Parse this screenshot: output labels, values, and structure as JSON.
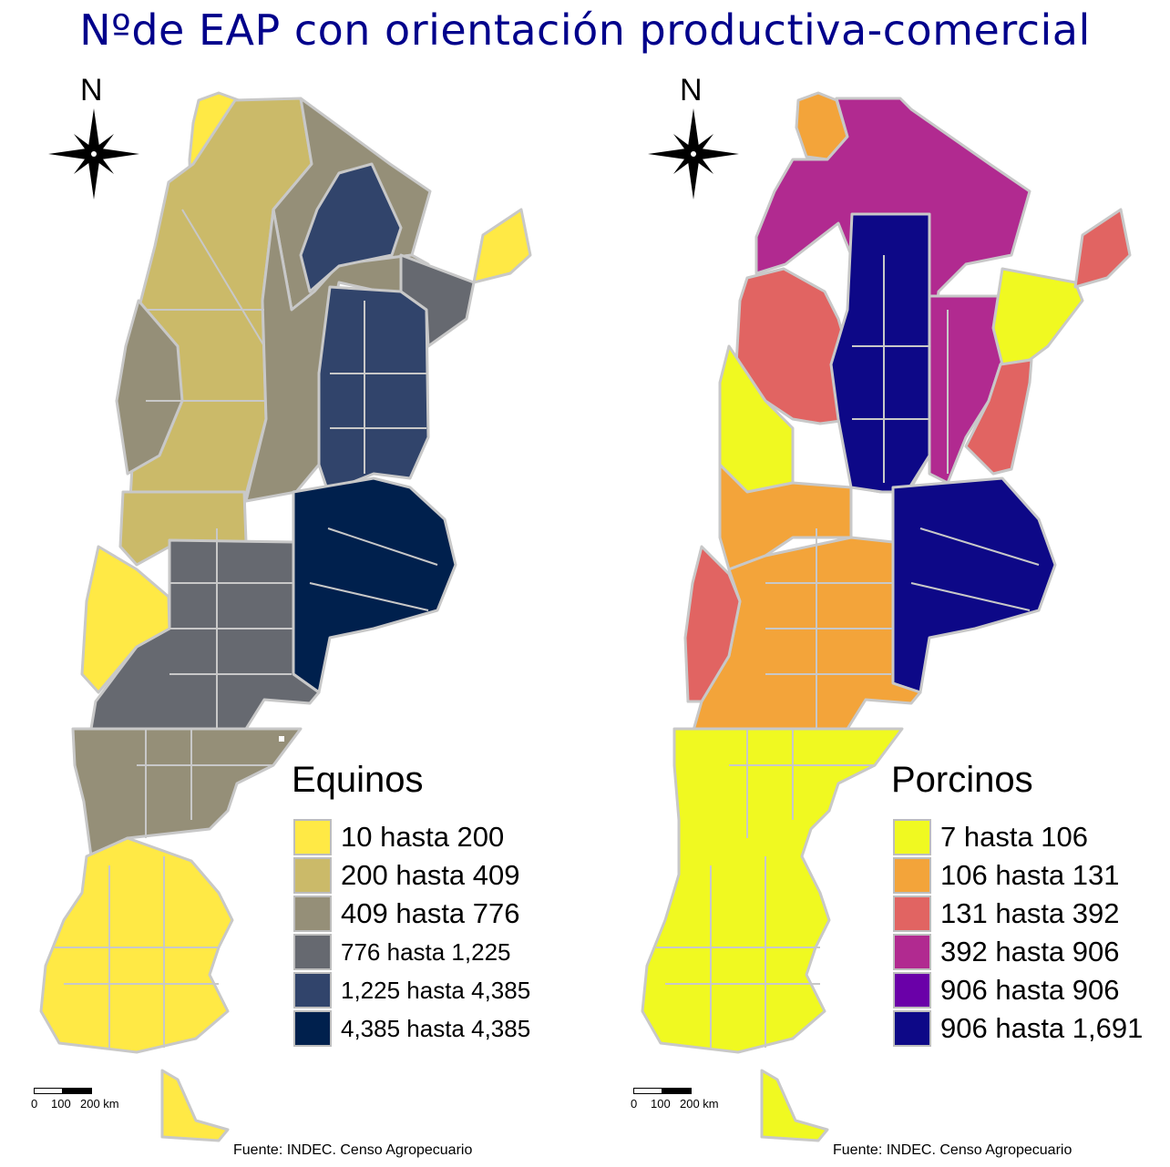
{
  "title": "Nºde EAP con orientación productiva-comercial",
  "maps": [
    {
      "north_label": "N",
      "legend_title": "Equinos",
      "legend": [
        {
          "label": "10 hasta 200",
          "color": "#ffe945"
        },
        {
          "label": "200 hasta 409",
          "color": "#cbba69"
        },
        {
          "label": "409 hasta 776",
          "color": "#958f78"
        },
        {
          "label": "776 hasta 1,225",
          "color": "#666970"
        },
        {
          "label": "1,225 hasta 4,385",
          "color": "#31446b"
        },
        {
          "label": "4,385 hasta 4,385",
          "color": "#00204d"
        }
      ],
      "scale": {
        "labels": [
          "0",
          "100",
          "200 km"
        ]
      },
      "source": "Fuente: INDEC. Censo Agropecuario"
    },
    {
      "north_label": "N",
      "legend_title": "Porcinos",
      "legend": [
        {
          "label": "7 hasta 106",
          "color": "#f0f921"
        },
        {
          "label": "106 hasta 131",
          "color": "#f3a43a"
        },
        {
          "label": "131 hasta 392",
          "color": "#e16462"
        },
        {
          "label": "392 hasta 906",
          "color": "#b12a90"
        },
        {
          "label": "906 hasta 906",
          "color": "#6a00a8"
        },
        {
          "label": "906 hasta 1,691",
          "color": "#0d0887"
        }
      ],
      "scale": {
        "labels": [
          "0",
          "100",
          "200 km"
        ]
      },
      "source": "Fuente: INDEC. Censo Agropecuario"
    }
  ]
}
